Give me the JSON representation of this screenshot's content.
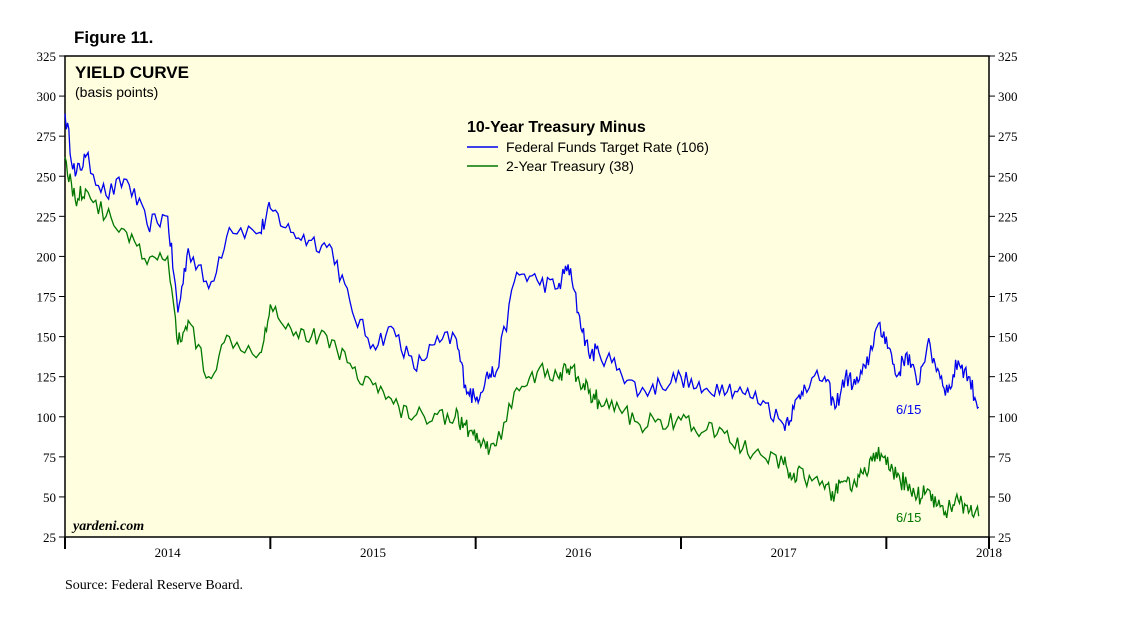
{
  "figure_label": "Figure 11.",
  "source": "Source: Federal Reserve Board.",
  "watermark": "yardeni.com",
  "colors": {
    "background": "#ffffdf",
    "series1": "#0000ee",
    "series2": "#007700"
  },
  "chart_data": {
    "type": "line",
    "title": "YIELD CURVE",
    "subtitle": "(basis points)",
    "legend_title": "10-Year Treasury Minus",
    "legend_position": "top-center",
    "ylim": [
      25,
      325
    ],
    "yticks": [
      25,
      50,
      75,
      100,
      125,
      150,
      175,
      200,
      225,
      250,
      275,
      300,
      325
    ],
    "xlim": [
      2014.0,
      2018.5
    ],
    "xticks": [
      2014.0,
      2015.0,
      2016.0,
      2017.0,
      2018.0
    ],
    "xtick_labels": [
      "2014",
      "2015",
      "2016",
      "2017",
      "2018"
    ],
    "grid": false,
    "series": [
      {
        "name": "Federal Funds Target Rate (106)",
        "end_label": "6/15",
        "color": "#0000ee",
        "x": [
          2014.0,
          2014.05,
          2014.1,
          2014.2,
          2014.3,
          2014.4,
          2014.5,
          2014.55,
          2014.6,
          2014.7,
          2014.8,
          2014.95,
          2015.0,
          2015.1,
          2015.2,
          2015.3,
          2015.4,
          2015.5,
          2015.6,
          2015.7,
          2015.8,
          2015.9,
          2015.95,
          2016.0,
          2016.05,
          2016.1,
          2016.2,
          2016.3,
          2016.4,
          2016.45,
          2016.5,
          2016.55,
          2016.6,
          2016.7,
          2016.8,
          2016.9,
          2017.0,
          2017.1,
          2017.2,
          2017.3,
          2017.4,
          2017.5,
          2017.55,
          2017.6,
          2017.7,
          2017.75,
          2017.8,
          2017.85,
          2017.9,
          2017.95,
          2018.0,
          2018.05,
          2018.1,
          2018.15,
          2018.2,
          2018.25,
          2018.3,
          2018.35,
          2018.4,
          2018.45
        ],
        "y": [
          289,
          250,
          262,
          238,
          248,
          220,
          225,
          165,
          205,
          180,
          218,
          215,
          230,
          215,
          210,
          205,
          165,
          145,
          155,
          130,
          145,
          150,
          120,
          110,
          125,
          128,
          190,
          185,
          180,
          195,
          165,
          140,
          140,
          130,
          115,
          120,
          125,
          115,
          120,
          115,
          110,
          95,
          105,
          120,
          125,
          105,
          125,
          120,
          130,
          155,
          150,
          125,
          140,
          120,
          145,
          130,
          115,
          135,
          125,
          106
        ]
      },
      {
        "name": "2-Year Treasury (38)",
        "end_label": "6/15",
        "color": "#007700",
        "x": [
          2014.0,
          2014.05,
          2014.1,
          2014.2,
          2014.3,
          2014.4,
          2014.5,
          2014.55,
          2014.6,
          2014.7,
          2014.8,
          2014.95,
          2015.0,
          2015.1,
          2015.2,
          2015.3,
          2015.4,
          2015.5,
          2015.6,
          2015.7,
          2015.8,
          2015.9,
          2015.95,
          2016.0,
          2016.05,
          2016.1,
          2016.2,
          2016.3,
          2016.4,
          2016.45,
          2016.5,
          2016.55,
          2016.6,
          2016.7,
          2016.8,
          2016.9,
          2017.0,
          2017.1,
          2017.2,
          2017.3,
          2017.4,
          2017.5,
          2017.55,
          2017.6,
          2017.7,
          2017.75,
          2017.8,
          2017.85,
          2017.9,
          2017.95,
          2018.0,
          2018.05,
          2018.1,
          2018.15,
          2018.2,
          2018.25,
          2018.3,
          2018.35,
          2018.4,
          2018.45
        ],
        "y": [
          262,
          235,
          242,
          225,
          215,
          195,
          200,
          145,
          160,
          125,
          150,
          140,
          170,
          155,
          150,
          148,
          130,
          120,
          108,
          100,
          102,
          100,
          95,
          85,
          80,
          82,
          118,
          128,
          125,
          130,
          125,
          115,
          110,
          105,
          95,
          98,
          98,
          90,
          92,
          80,
          75,
          70,
          65,
          62,
          55,
          52,
          60,
          58,
          65,
          78,
          70,
          62,
          58,
          50,
          55,
          45,
          42,
          48,
          40,
          38
        ]
      }
    ]
  }
}
